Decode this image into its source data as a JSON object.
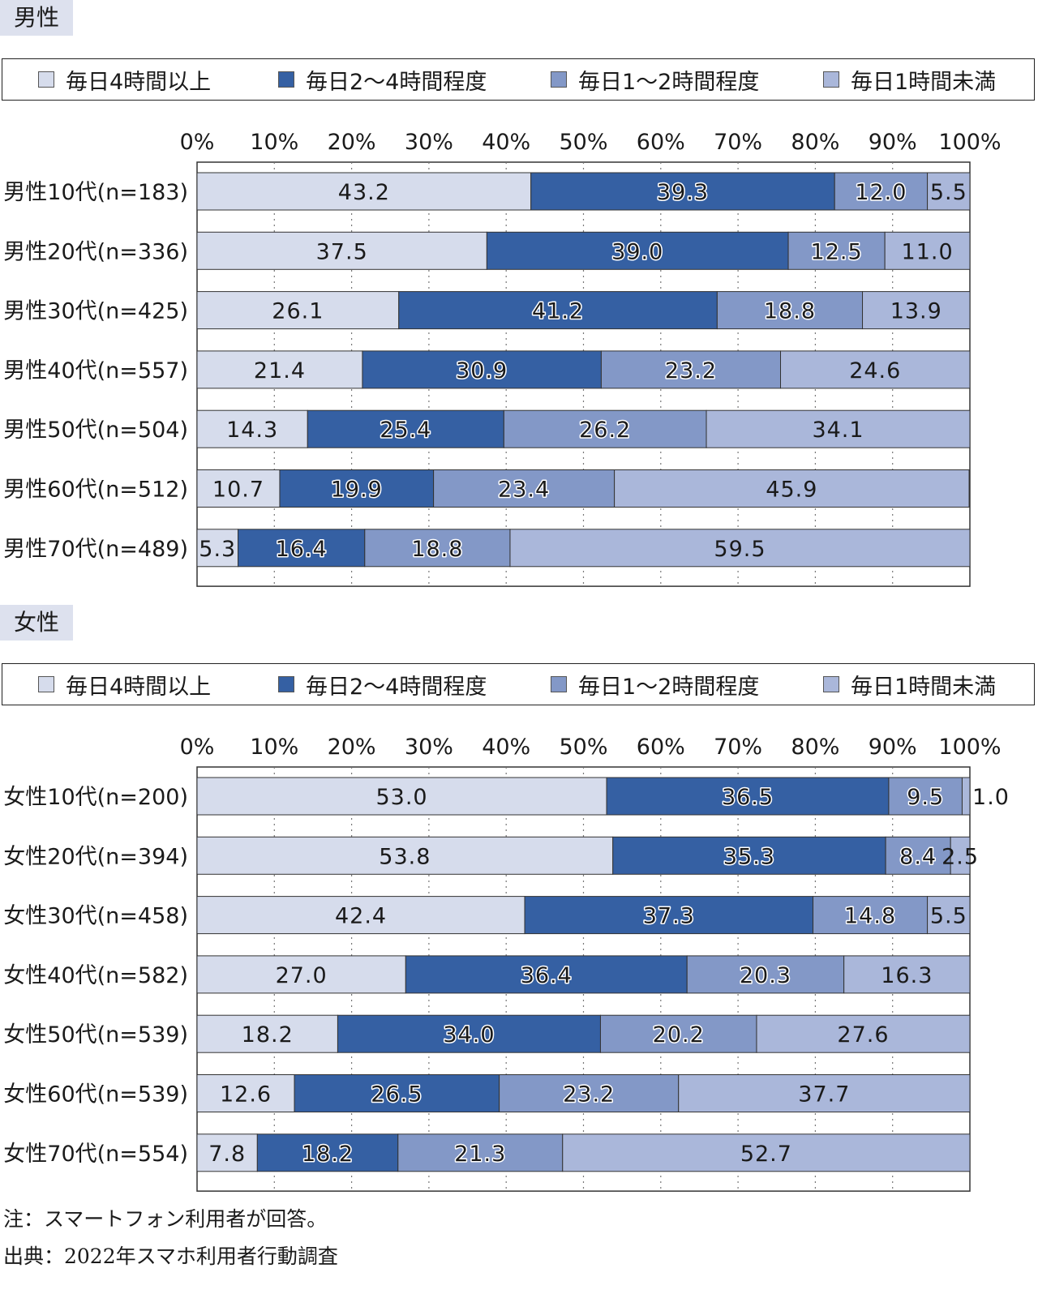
{
  "legend": [
    {
      "label": "毎日4時間以上",
      "color": "#d6dcec"
    },
    {
      "label": "毎日2〜4時間程度",
      "color": "#3560a3"
    },
    {
      "label": "毎日1〜2時間程度",
      "color": "#8398c7"
    },
    {
      "label": "毎日1時間未満",
      "color": "#aab7da"
    }
  ],
  "chart_data": [
    {
      "type": "bar",
      "orientation": "horizontal",
      "stacked": true,
      "title": "男性",
      "x_ticks": [
        "0%",
        "10%",
        "20%",
        "30%",
        "40%",
        "50%",
        "60%",
        "70%",
        "80%",
        "90%",
        "100%"
      ],
      "xlim": [
        0,
        100
      ],
      "legend_position": "top",
      "categories": [
        "男性10代(n=183)",
        "男性20代(n=336)",
        "男性30代(n=425)",
        "男性40代(n=557)",
        "男性50代(n=504)",
        "男性60代(n=512)",
        "男性70代(n=489)"
      ],
      "series": [
        {
          "name": "毎日4時間以上",
          "values": [
            43.2,
            37.5,
            26.1,
            21.4,
            14.3,
            10.7,
            5.3
          ],
          "labels": [
            "43.2",
            "37.5",
            "26.1",
            "21.4",
            "14.3",
            "10.7",
            "5.3"
          ]
        },
        {
          "name": "毎日2〜4時間程度",
          "values": [
            39.3,
            39.0,
            41.2,
            30.9,
            25.4,
            19.9,
            16.4
          ],
          "labels": [
            "39.3",
            "39.0",
            "41.2",
            "30.9",
            "25.4",
            "19.9",
            "16.4"
          ]
        },
        {
          "name": "毎日1〜2時間程度",
          "values": [
            12.0,
            12.5,
            18.8,
            23.2,
            26.2,
            23.4,
            18.8
          ],
          "labels": [
            "12.0",
            "12.5",
            "18.8",
            "23.2",
            "26.2",
            "23.4",
            "18.8"
          ]
        },
        {
          "name": "毎日1時間未満",
          "values": [
            5.5,
            11.0,
            13.9,
            24.6,
            34.1,
            45.9,
            59.5
          ],
          "labels": [
            "5.5",
            "11.0",
            "13.9",
            "24.6",
            "34.1",
            "45.9",
            "59.5"
          ]
        }
      ]
    },
    {
      "type": "bar",
      "orientation": "horizontal",
      "stacked": true,
      "title": "女性",
      "x_ticks": [
        "0%",
        "10%",
        "20%",
        "30%",
        "40%",
        "50%",
        "60%",
        "70%",
        "80%",
        "90%",
        "100%"
      ],
      "xlim": [
        0,
        100
      ],
      "legend_position": "top",
      "categories": [
        "女性10代(n=200)",
        "女性20代(n=394)",
        "女性30代(n=458)",
        "女性40代(n=582)",
        "女性50代(n=539)",
        "女性60代(n=539)",
        "女性70代(n=554)"
      ],
      "series": [
        {
          "name": "毎日4時間以上",
          "values": [
            53.0,
            53.8,
            42.4,
            27.0,
            18.2,
            12.6,
            7.8
          ],
          "labels": [
            "53.0",
            "53.8",
            "42.4",
            "27.0",
            "18.2",
            "12.6",
            "7.8"
          ]
        },
        {
          "name": "毎日2〜4時間程度",
          "values": [
            36.5,
            35.3,
            37.3,
            36.4,
            34.0,
            26.5,
            18.2
          ],
          "labels": [
            "36.5",
            "35.3",
            "37.3",
            "36.4",
            "34.0",
            "26.5",
            "18.2"
          ]
        },
        {
          "name": "毎日1〜2時間程度",
          "values": [
            9.5,
            8.4,
            14.8,
            20.3,
            20.2,
            23.2,
            21.3
          ],
          "labels": [
            "9.5",
            "8.4",
            "14.8",
            "20.3",
            "20.2",
            "23.2",
            "21.3"
          ]
        },
        {
          "name": "毎日1時間未満",
          "values": [
            1.0,
            2.5,
            5.5,
            16.3,
            27.6,
            37.7,
            52.7
          ],
          "labels": [
            "1.0",
            "2.5",
            "5.5",
            "16.3",
            "27.6",
            "37.7",
            "52.7"
          ]
        }
      ]
    }
  ],
  "notes": {
    "note": "注：スマートフォン利用者が回答。",
    "source": "出典：2022年スマホ利用者行動調査"
  }
}
